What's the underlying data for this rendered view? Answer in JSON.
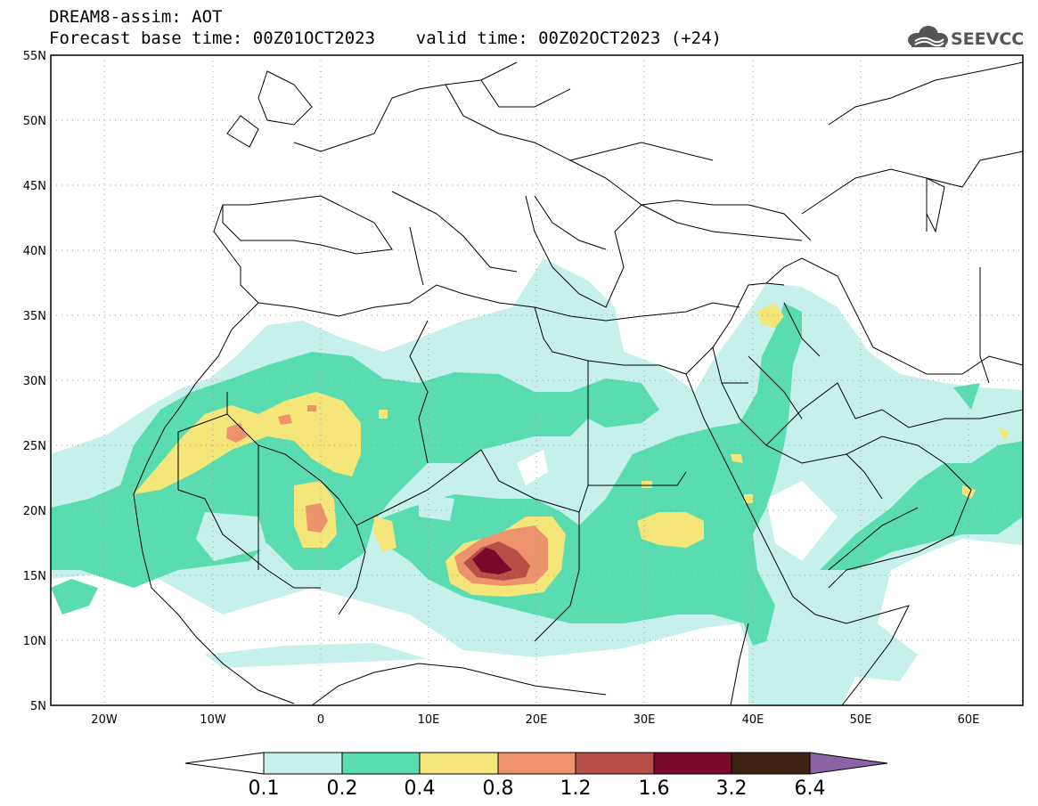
{
  "header": {
    "title_line1": "DREAM8-assim: AOT",
    "title_line2": "Forecast base time: 00Z01OCT2023    valid time: 00Z02OCT2023 (+24)",
    "logo_text": "SEEVCCC"
  },
  "map": {
    "lat_labels": [
      "55N",
      "50N",
      "45N",
      "40N",
      "35N",
      "30N",
      "25N",
      "20N",
      "15N",
      "10N",
      "5N"
    ],
    "lon_labels": [
      "20W",
      "10W",
      "0",
      "10E",
      "20E",
      "30E",
      "40E",
      "50E",
      "60E"
    ],
    "extent": {
      "lon": [
        -25,
        65
      ],
      "lat": [
        5,
        55
      ]
    },
    "grid": "dotted",
    "variable": "AOT"
  },
  "colorbar": {
    "labels": [
      "0.1",
      "0.2",
      "0.4",
      "0.8",
      "1.2",
      "1.6",
      "3.2",
      "6.4"
    ],
    "colors": [
      "#ffffff",
      "#c6f0ea",
      "#59dcb0",
      "#f5e67a",
      "#ec936c",
      "#b74f46",
      "#790a2c",
      "#3c2214",
      "#8a64a6"
    ]
  },
  "icons": [
    "cloud-logo-icon"
  ]
}
